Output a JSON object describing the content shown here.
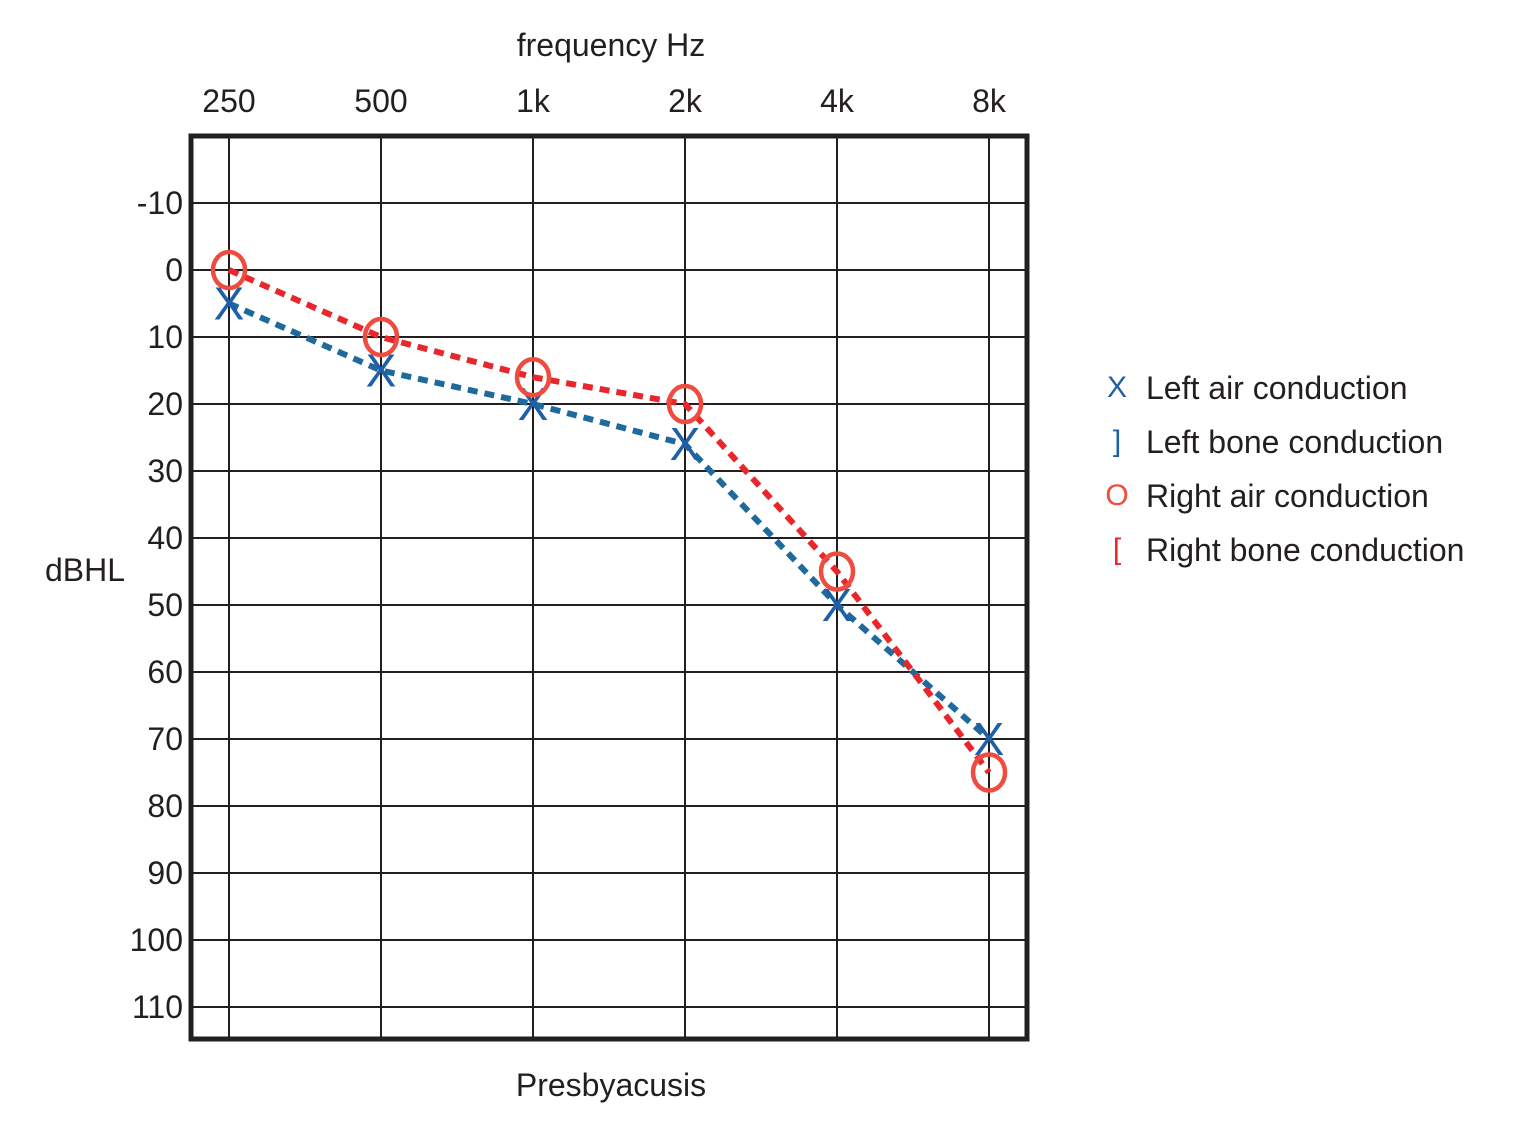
{
  "chart_data": {
    "type": "line",
    "title": "",
    "xlabel": "frequency Hz",
    "ylabel": "dBHL",
    "caption": "Presbyacusis",
    "categories": [
      "250",
      "500",
      "1k",
      "2k",
      "4k",
      "8k"
    ],
    "y_ticks": [
      -10,
      0,
      10,
      20,
      30,
      40,
      50,
      60,
      70,
      80,
      90,
      100,
      110
    ],
    "ylim": [
      -20,
      115
    ],
    "y_inverted": true,
    "x_axis_position": "top",
    "grid": true,
    "legend_position": "right",
    "series": [
      {
        "name": "Left air conduction",
        "symbol": "X",
        "color": "#1f5fa8",
        "line_color": "#1f6a9c",
        "values": [
          5,
          15,
          20,
          26,
          50,
          70
        ]
      },
      {
        "name": "Right air conduction",
        "symbol": "O",
        "color": "#ef4b3f",
        "line_color": "#e8262b",
        "values": [
          0,
          10,
          16,
          20,
          45,
          75
        ]
      }
    ],
    "legend": [
      {
        "symbol": "X",
        "label": "Left air conduction",
        "color": "#1f5fa8"
      },
      {
        "symbol": "]",
        "label": "Left bone conduction",
        "color": "#1f5fa8"
      },
      {
        "symbol": "O",
        "label": "Right air conduction",
        "color": "#ef4b3f"
      },
      {
        "symbol": "[",
        "label": "Right bone conduction",
        "color": "#e8262b"
      }
    ]
  }
}
